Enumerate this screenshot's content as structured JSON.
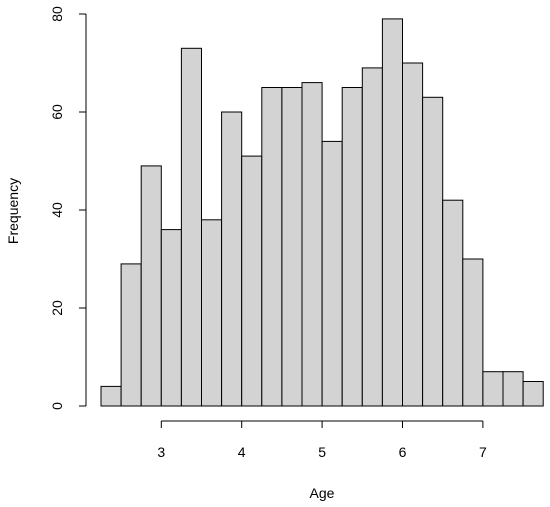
{
  "chart_data": {
    "type": "bar",
    "xlabel": "Age",
    "ylabel": "Frequency",
    "bin_edges": [
      2.25,
      2.5,
      2.75,
      3.0,
      3.25,
      3.5,
      3.75,
      4.0,
      4.25,
      4.5,
      4.75,
      5.0,
      5.25,
      5.5,
      5.75,
      6.0,
      6.25,
      6.5,
      6.75,
      7.0,
      7.25,
      7.5,
      7.75
    ],
    "values": [
      4,
      29,
      49,
      36,
      73,
      38,
      60,
      51,
      65,
      65,
      66,
      54,
      65,
      69,
      79,
      70,
      63,
      42,
      30,
      7,
      7,
      5
    ],
    "xticks": [
      3,
      4,
      5,
      6,
      7
    ],
    "xtick_labels": [
      "3",
      "4",
      "5",
      "6",
      "7"
    ],
    "yticks": [
      0,
      20,
      40,
      60,
      80
    ],
    "ytick_labels": [
      "0",
      "20",
      "40",
      "60",
      "80"
    ],
    "ylim": [
      0,
      80
    ],
    "grid": false
  }
}
